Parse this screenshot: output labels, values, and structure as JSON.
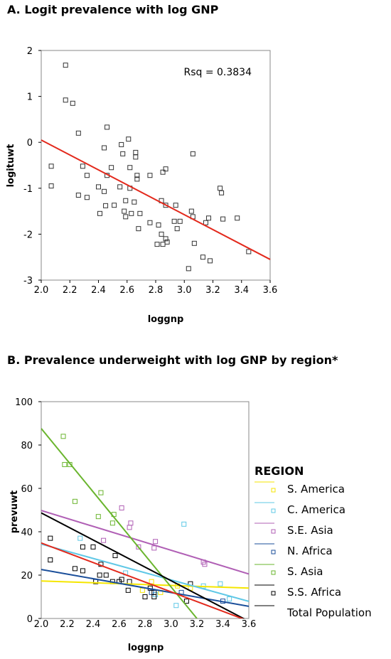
{
  "panel_a_title": "A.  Logit prevalence with log GNP",
  "panel_b_title": "B.    Prevalence underweight with log GNP by region*",
  "legend": {
    "title": "REGION",
    "items": [
      {
        "label": "S. America",
        "color": "#f5e600",
        "marker": "square"
      },
      {
        "label": "C. America",
        "color": "#5fc8e6",
        "marker": "square"
      },
      {
        "label": "S.E. Asia",
        "color": "#b05fb5",
        "marker": "square"
      },
      {
        "label": "N. Africa",
        "color": "#1a4e9a",
        "marker": "square"
      },
      {
        "label": "S. Asia",
        "color": "#6ab52e",
        "marker": "square"
      },
      {
        "label": "S.S. Africa",
        "color": "#000000",
        "marker": "square"
      },
      {
        "label": "Total Population",
        "color": "#000000",
        "marker": "line"
      }
    ]
  },
  "chart_data": [
    {
      "type": "scatter",
      "title": "A.  Logit prevalence with log GNP",
      "xlabel": "loggnp",
      "ylabel": "logituwt",
      "xlim": [
        2.0,
        3.6
      ],
      "ylim": [
        -3,
        2
      ],
      "xticks": [
        "2.0",
        "2.2",
        "2.4",
        "2.6",
        "2.8",
        "3.0",
        "3.2",
        "3.4",
        "3.6"
      ],
      "yticks": [
        "-3",
        "-2",
        "-1",
        "0",
        "1",
        "2"
      ],
      "annotation": "Rsq = 0.3834",
      "fit_line": {
        "color": "#e3291c",
        "x": [
          2.0,
          3.6
        ],
        "y": [
          0.05,
          -2.55
        ]
      },
      "points": [
        [
          2.07,
          -0.52
        ],
        [
          2.07,
          -0.95
        ],
        [
          2.17,
          1.68
        ],
        [
          2.17,
          0.92
        ],
        [
          2.22,
          0.85
        ],
        [
          2.26,
          0.2
        ],
        [
          2.26,
          -1.15
        ],
        [
          2.29,
          -0.52
        ],
        [
          2.32,
          -0.72
        ],
        [
          2.32,
          -1.2
        ],
        [
          2.4,
          -0.97
        ],
        [
          2.41,
          -1.55
        ],
        [
          2.44,
          -1.07
        ],
        [
          2.45,
          -1.38
        ],
        [
          2.44,
          -0.12
        ],
        [
          2.46,
          0.33
        ],
        [
          2.46,
          -0.72
        ],
        [
          2.49,
          -0.55
        ],
        [
          2.51,
          -1.37
        ],
        [
          2.55,
          -0.97
        ],
        [
          2.56,
          -0.05
        ],
        [
          2.57,
          -0.25
        ],
        [
          2.58,
          -1.5
        ],
        [
          2.59,
          -1.62
        ],
        [
          2.59,
          -1.27
        ],
        [
          2.61,
          0.07
        ],
        [
          2.62,
          -0.55
        ],
        [
          2.62,
          -1.0
        ],
        [
          2.63,
          -1.55
        ],
        [
          2.65,
          -1.3
        ],
        [
          2.66,
          -0.22
        ],
        [
          2.66,
          -0.32
        ],
        [
          2.67,
          -0.72
        ],
        [
          2.67,
          -0.8
        ],
        [
          2.68,
          -1.88
        ],
        [
          2.69,
          -1.55
        ],
        [
          2.76,
          -0.72
        ],
        [
          2.76,
          -1.75
        ],
        [
          2.81,
          -2.22
        ],
        [
          2.82,
          -1.8
        ],
        [
          2.84,
          -1.27
        ],
        [
          2.84,
          -2.0
        ],
        [
          2.85,
          -0.65
        ],
        [
          2.85,
          -2.22
        ],
        [
          2.87,
          -0.58
        ],
        [
          2.87,
          -1.37
        ],
        [
          2.87,
          -2.1
        ],
        [
          2.88,
          -2.17
        ],
        [
          2.93,
          -1.72
        ],
        [
          2.94,
          -1.37
        ],
        [
          2.95,
          -1.88
        ],
        [
          2.97,
          -1.72
        ],
        [
          3.03,
          -2.75
        ],
        [
          3.05,
          -1.5
        ],
        [
          3.06,
          -0.25
        ],
        [
          3.06,
          -1.62
        ],
        [
          3.07,
          -2.2
        ],
        [
          3.13,
          -2.5
        ],
        [
          3.15,
          -1.75
        ],
        [
          3.17,
          -1.65
        ],
        [
          3.18,
          -2.58
        ],
        [
          3.25,
          -1.0
        ],
        [
          3.26,
          -1.1
        ],
        [
          3.27,
          -1.67
        ],
        [
          3.37,
          -1.65
        ],
        [
          3.45,
          -2.38
        ]
      ]
    },
    {
      "type": "scatter",
      "title": "B.    Prevalence underweight with log GNP by region*",
      "xlabel": "loggnp",
      "ylabel": "prevuwt",
      "xlim": [
        2.0,
        3.6
      ],
      "ylim": [
        0,
        100
      ],
      "xticks": [
        "2.0",
        "2.2",
        "2.4",
        "2.6",
        "2.8",
        "3.0",
        "3.2",
        "3.4",
        "3.6"
      ],
      "yticks": [
        "0",
        "20",
        "40",
        "60",
        "80",
        "100"
      ],
      "legend_position": "right",
      "series": [
        {
          "name": "S. America",
          "color": "#f5e600",
          "line": [
            [
              2.0,
              17.3
            ],
            [
              3.6,
              14.0
            ]
          ],
          "points": [
            [
              2.78,
              13
            ],
            [
              2.85,
              17
            ],
            [
              2.92,
              12
            ],
            [
              3.05,
              15
            ],
            [
              3.15,
              14
            ]
          ]
        },
        {
          "name": "C. America",
          "color": "#5fc8e6",
          "line": [
            [
              2.0,
              34.3
            ],
            [
              3.6,
              7.9
            ]
          ],
          "points": [
            [
              2.3,
              37
            ],
            [
              2.65,
              21
            ],
            [
              2.88,
              11
            ],
            [
              3.04,
              6
            ],
            [
              3.1,
              43.5
            ],
            [
              3.25,
              15
            ],
            [
              3.38,
              16
            ],
            [
              3.45,
              9
            ]
          ]
        },
        {
          "name": "S.E. Asia",
          "color": "#b05fb5",
          "line": [
            [
              2.0,
              49.8
            ],
            [
              3.6,
              20.5
            ]
          ],
          "points": [
            [
              2.48,
              36
            ],
            [
              2.62,
              51
            ],
            [
              2.68,
              42
            ],
            [
              2.69,
              44
            ],
            [
              2.75,
              33
            ],
            [
              2.87,
              32.5
            ],
            [
              2.88,
              35.5
            ],
            [
              3.25,
              26
            ],
            [
              3.26,
              25
            ]
          ]
        },
        {
          "name": "N. Africa",
          "color": "#1a4e9a",
          "line": [
            [
              2.0,
              22.6
            ],
            [
              3.6,
              5.6
            ]
          ],
          "points": [
            [
              2.85,
              12
            ],
            [
              3.08,
              12
            ],
            [
              3.4,
              8
            ]
          ]
        },
        {
          "name": "S. Asia",
          "color": "#6ab52e",
          "line": [
            [
              2.0,
              87.6
            ],
            [
              3.2,
              0.0
            ]
          ],
          "points": [
            [
              2.17,
              84
            ],
            [
              2.18,
              71
            ],
            [
              2.22,
              71
            ],
            [
              2.26,
              54
            ],
            [
              2.44,
              47
            ],
            [
              2.46,
              58
            ],
            [
              2.55,
              44
            ],
            [
              2.56,
              48
            ]
          ]
        },
        {
          "name": "S.S. Africa",
          "color": "#000000",
          "line": [
            [
              2.0,
              48.7
            ],
            [
              3.6,
              -1.3
            ]
          ],
          "points": [
            [
              2.07,
              37
            ],
            [
              2.07,
              27
            ],
            [
              2.26,
              23
            ],
            [
              2.32,
              22
            ],
            [
              2.32,
              33
            ],
            [
              2.4,
              33
            ],
            [
              2.42,
              17
            ],
            [
              2.45,
              20
            ],
            [
              2.46,
              25
            ],
            [
              2.5,
              20
            ],
            [
              2.55,
              17
            ],
            [
              2.57,
              29
            ],
            [
              2.6,
              17
            ],
            [
              2.62,
              18
            ],
            [
              2.67,
              13
            ],
            [
              2.68,
              17
            ],
            [
              2.8,
              10
            ],
            [
              2.84,
              14
            ],
            [
              2.87,
              12
            ],
            [
              2.87,
              10
            ],
            [
              3.12,
              8
            ],
            [
              3.15,
              16
            ]
          ]
        },
        {
          "name": "Total Population",
          "color": "#e3291c",
          "line": [
            [
              2.0,
              34.8
            ],
            [
              3.6,
              -1.2
            ]
          ],
          "points": []
        }
      ]
    }
  ]
}
